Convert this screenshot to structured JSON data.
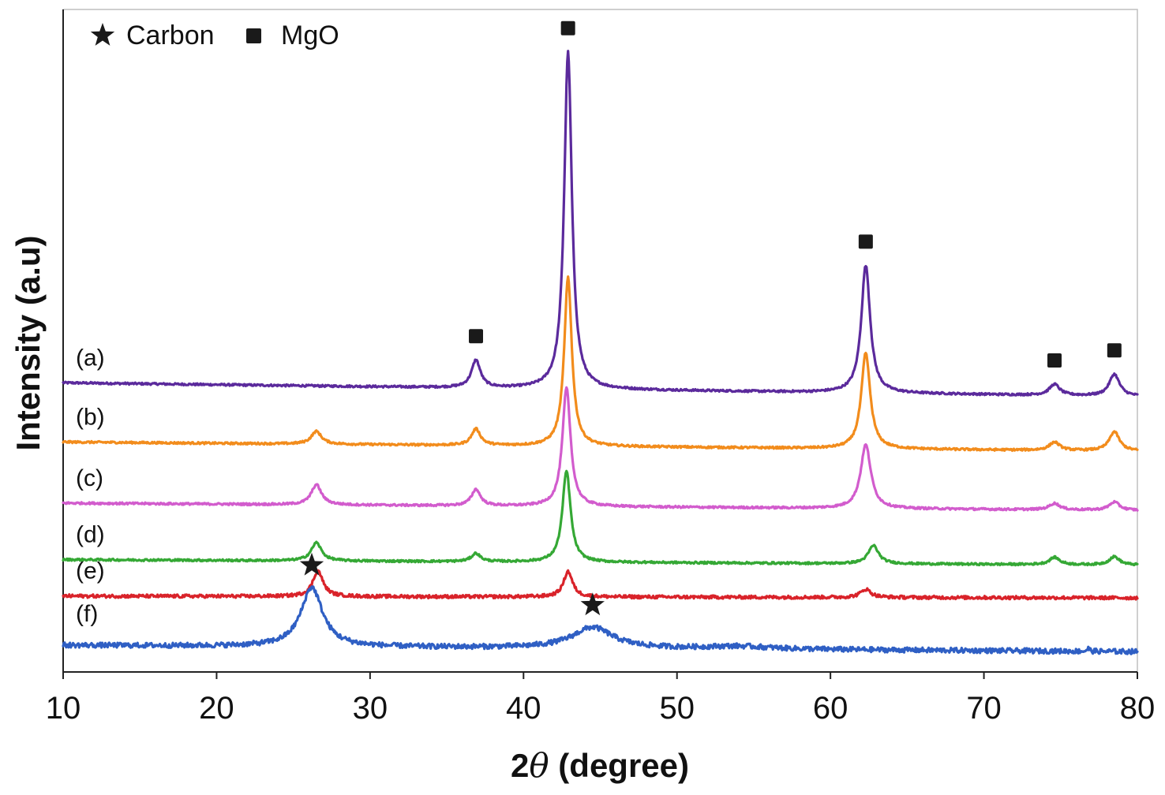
{
  "chart_data": {
    "type": "line",
    "title": "",
    "xlabel": "2θ (degree)",
    "xlabel_parts": {
      "prefix": "2",
      "symbol": "θ",
      "suffix": " (degree)"
    },
    "ylabel": "Intensity (a.u)",
    "xlim": [
      10,
      80
    ],
    "xticks": [
      10,
      20,
      30,
      40,
      50,
      60,
      70,
      80
    ],
    "xtick_labels": [
      "10",
      "20",
      "30",
      "40",
      "50",
      "60",
      "70",
      "80"
    ],
    "yticks": [],
    "grid": false,
    "legend": {
      "placement": "top-left",
      "entries": [
        {
          "label": "Carbon",
          "marker": "star",
          "color": "#1a1a1a"
        },
        {
          "label": "MgO",
          "marker": "square",
          "color": "#1a1a1a"
        }
      ]
    },
    "series": [
      {
        "name": "(a)",
        "color": "#5b2a9c",
        "baseline": 30,
        "drop": 1.5,
        "peaks": [
          {
            "x": 36.9,
            "h": 3.0,
            "w": 0.35
          },
          {
            "x": 42.9,
            "h": 37.0,
            "w": 0.3
          },
          {
            "x": 62.3,
            "h": 14.0,
            "w": 0.35
          },
          {
            "x": 74.6,
            "h": 1.2,
            "w": 0.4
          },
          {
            "x": 78.5,
            "h": 2.4,
            "w": 0.4
          }
        ]
      },
      {
        "name": "(b)",
        "color": "#f28c1c",
        "baseline": 23.5,
        "drop": 1.0,
        "peaks": [
          {
            "x": 26.5,
            "h": 1.4,
            "w": 0.4
          },
          {
            "x": 36.9,
            "h": 1.8,
            "w": 0.35
          },
          {
            "x": 42.9,
            "h": 18.5,
            "w": 0.3
          },
          {
            "x": 62.3,
            "h": 10.5,
            "w": 0.35
          },
          {
            "x": 74.6,
            "h": 0.9,
            "w": 0.4
          },
          {
            "x": 78.5,
            "h": 2.1,
            "w": 0.4
          }
        ]
      },
      {
        "name": "(c)",
        "color": "#d25ccd",
        "baseline": 16.8,
        "drop": 0.8,
        "peaks": [
          {
            "x": 26.5,
            "h": 2.2,
            "w": 0.4
          },
          {
            "x": 36.9,
            "h": 1.8,
            "w": 0.35
          },
          {
            "x": 42.8,
            "h": 13.0,
            "w": 0.32
          },
          {
            "x": 62.3,
            "h": 7.0,
            "w": 0.4
          },
          {
            "x": 74.6,
            "h": 0.7,
            "w": 0.4
          },
          {
            "x": 78.5,
            "h": 0.9,
            "w": 0.4
          }
        ]
      },
      {
        "name": "(d)",
        "color": "#35a835",
        "baseline": 10.6,
        "drop": 0.6,
        "peaks": [
          {
            "x": 26.5,
            "h": 2.0,
            "w": 0.4
          },
          {
            "x": 36.9,
            "h": 0.9,
            "w": 0.35
          },
          {
            "x": 42.8,
            "h": 10.0,
            "w": 0.32
          },
          {
            "x": 62.8,
            "h": 2.0,
            "w": 0.4
          },
          {
            "x": 74.6,
            "h": 0.8,
            "w": 0.4
          },
          {
            "x": 78.5,
            "h": 0.9,
            "w": 0.4
          }
        ]
      },
      {
        "name": "(e)",
        "color": "#d9232a",
        "baseline": 6.6,
        "drop": 0.2,
        "peaks": [
          {
            "x": 26.6,
            "h": 2.8,
            "w": 0.4
          },
          {
            "x": 42.9,
            "h": 2.8,
            "w": 0.35
          },
          {
            "x": 62.3,
            "h": 0.9,
            "w": 0.4
          }
        ]
      },
      {
        "name": "(f)",
        "color": "#2f5fc4",
        "baseline": 1.2,
        "drop": 0.7,
        "peaks": [
          {
            "x": 26.2,
            "h": 6.5,
            "w": 0.85
          },
          {
            "x": 44.5,
            "h": 2.3,
            "w": 1.6
          },
          {
            "x": 54.0,
            "h": 0.3,
            "w": 2.5
          },
          {
            "x": 76.8,
            "h": 0.3,
            "w": 0.1
          }
        ]
      }
    ],
    "markers": [
      {
        "x": 36.9,
        "series": "(a)",
        "symbol": "square",
        "label": "MgO"
      },
      {
        "x": 42.9,
        "series": "(a)",
        "symbol": "square",
        "label": "MgO"
      },
      {
        "x": 62.3,
        "series": "(a)",
        "symbol": "square",
        "label": "MgO"
      },
      {
        "x": 74.6,
        "series": "(a)",
        "symbol": "square",
        "label": "MgO"
      },
      {
        "x": 78.5,
        "series": "(a)",
        "symbol": "square",
        "label": "MgO"
      },
      {
        "x": 26.2,
        "series": "(f)",
        "symbol": "star",
        "label": "Carbon"
      },
      {
        "x": 44.5,
        "series": "(f)",
        "symbol": "star",
        "label": "Carbon"
      }
    ]
  }
}
